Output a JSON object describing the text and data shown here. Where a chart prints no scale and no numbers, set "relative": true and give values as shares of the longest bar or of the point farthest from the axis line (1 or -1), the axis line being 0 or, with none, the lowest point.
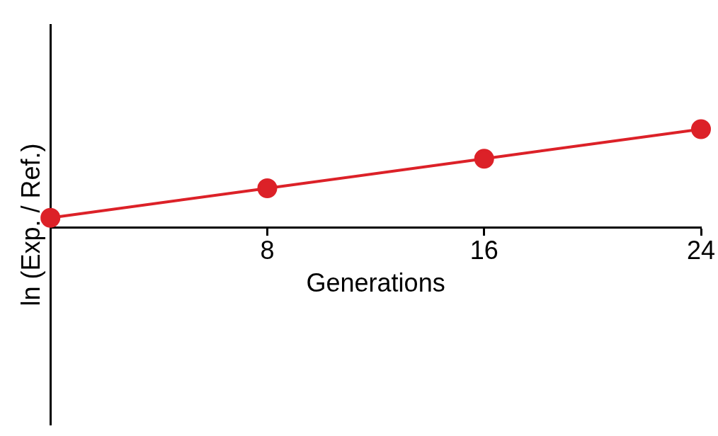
{
  "chart_data": {
    "type": "line",
    "xlabel": "Generations",
    "ylabel": "ln (Exp. / Ref.)",
    "relative": true,
    "x": [
      0,
      8,
      16,
      24
    ],
    "xlim": [
      0,
      24
    ],
    "xticks": [
      {
        "value": 0,
        "label": null
      },
      8,
      16,
      24
    ],
    "series": [
      {
        "color": "#dc2128",
        "values": [
          0.1,
          0.4,
          0.7,
          1.0
        ]
      }
    ],
    "marker": "circle",
    "line_style": "solid",
    "grid": false,
    "legend": false
  }
}
